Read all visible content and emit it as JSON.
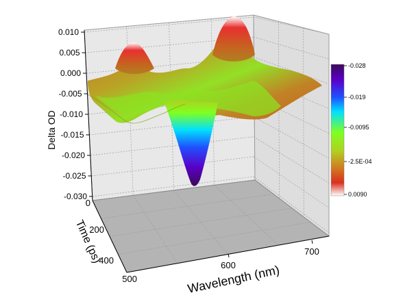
{
  "chart_data": {
    "type": "surface",
    "title": "",
    "zlabel": "Delta OD",
    "xlabel": "Wavelength (nm)",
    "ylabel": "Time (ps)",
    "x_ticks": [
      "600",
      "700"
    ],
    "y_ticks": [
      "0",
      "200",
      "400",
      "500"
    ],
    "z_ticks": [
      "0.010",
      "0.005",
      "0.000",
      "-0.005",
      "-0.010",
      "-0.015",
      "-0.020",
      "-0.025",
      "-0.030"
    ],
    "zlim": [
      -0.03,
      0.011
    ],
    "xlim": [
      500,
      720
    ],
    "ylim": [
      0,
      500
    ],
    "colorbar": {
      "labels": [
        "-0.028",
        "-0.019",
        "-0.0095",
        "-2.5E-04",
        "0.0090"
      ],
      "colors": [
        "#3b0a5a",
        "#5a00c8",
        "#2050ff",
        "#00e0ff",
        "#80ff20",
        "#b0d020",
        "#d08020",
        "#d83020",
        "#ffffff"
      ]
    },
    "features": [
      {
        "wavelength": 690,
        "time": 0,
        "delta_od": 0.011,
        "kind": "peak"
      },
      {
        "wavelength": 560,
        "time": 0,
        "delta_od": -0.028,
        "kind": "trough"
      },
      {
        "wavelength": 620,
        "time": 200,
        "delta_od": 0.005,
        "kind": "ridge"
      }
    ]
  }
}
